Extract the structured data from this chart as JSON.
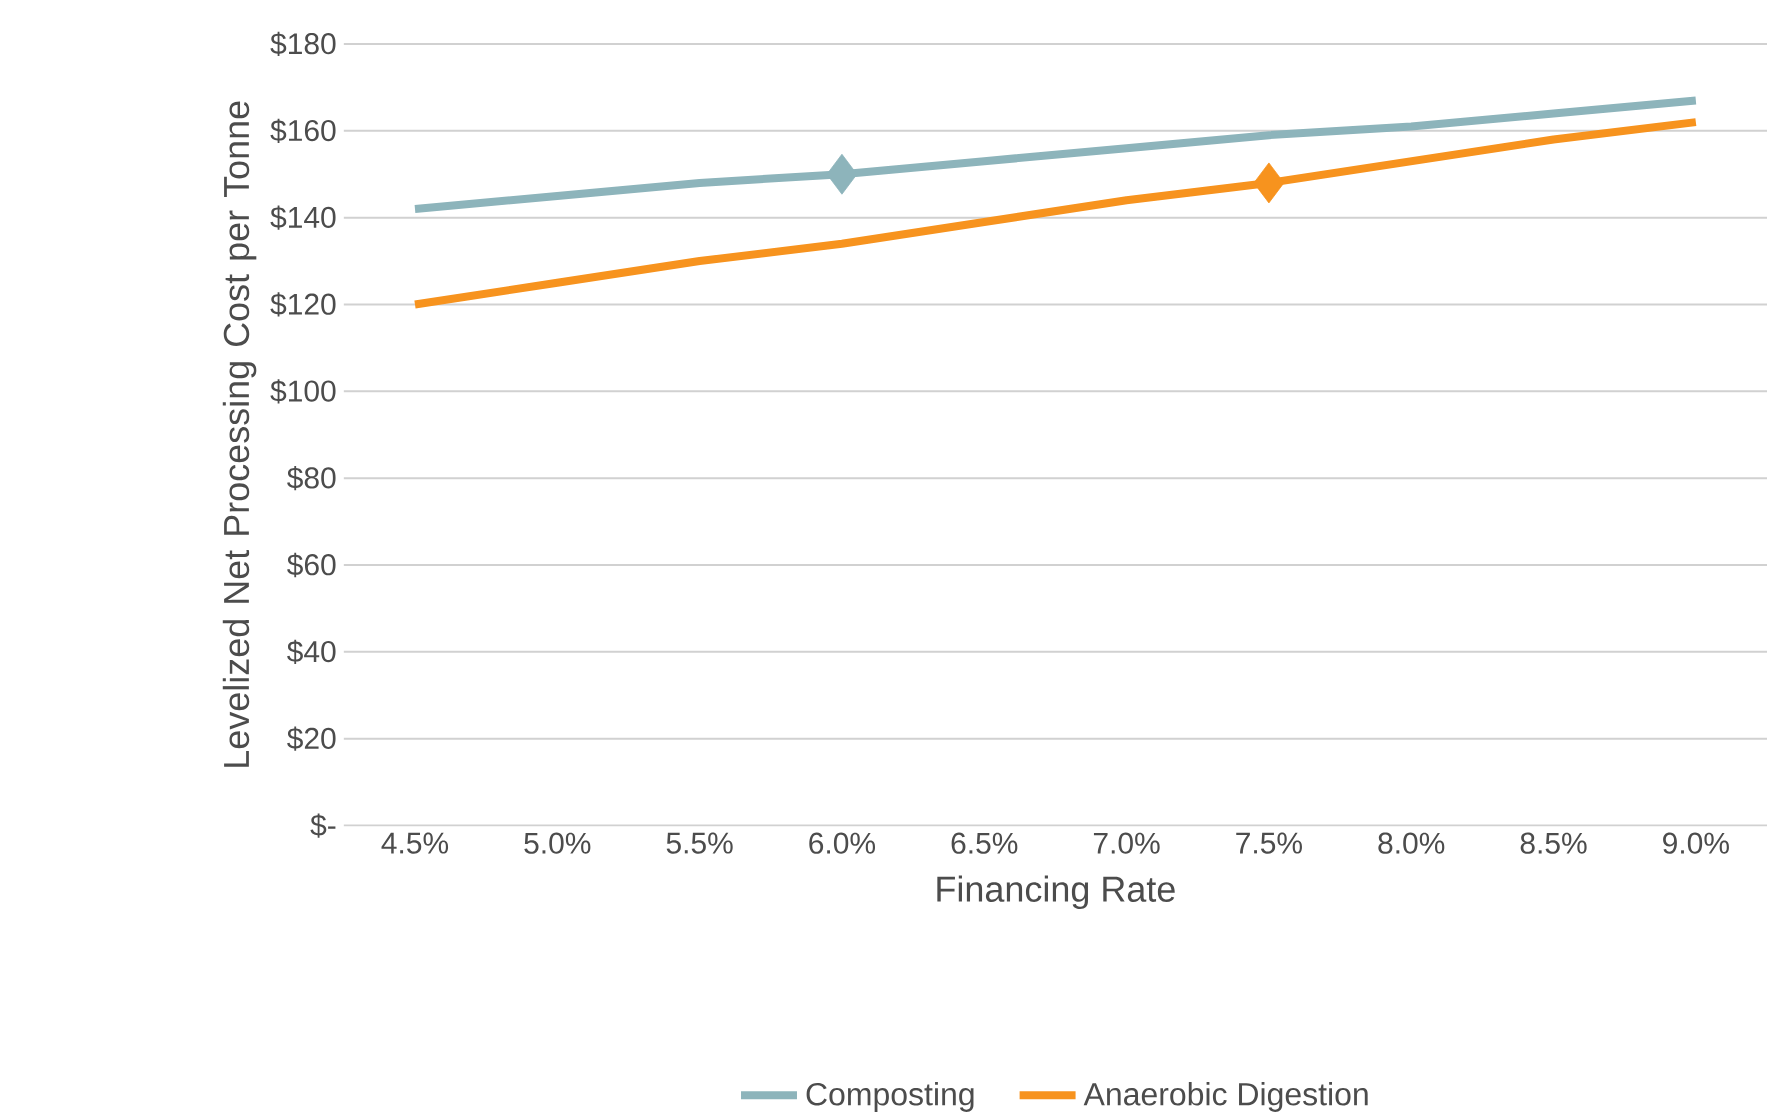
{
  "chart_data": {
    "type": "line",
    "xlabel": "Financing Rate",
    "ylabel": "Levelized Net Processing Cost per Tonne",
    "categories": [
      "4.5%",
      "5.0%",
      "5.5%",
      "6.0%",
      "6.5%",
      "7.0%",
      "7.5%",
      "8.0%",
      "8.5%",
      "9.0%"
    ],
    "series": [
      {
        "name": "Composting",
        "color": "#8db4bb",
        "values": [
          142,
          145,
          148,
          150,
          153,
          156,
          159,
          161,
          164,
          167
        ]
      },
      {
        "name": "Anaerobic Digestion",
        "color": "#f7931e",
        "values": [
          120,
          125,
          130,
          134,
          139,
          144,
          148,
          153,
          158,
          162
        ]
      },
      {
        "type": "scatter",
        "color": "#8db4bb",
        "marker": "diamond",
        "values": [
          null,
          null,
          null,
          150,
          null,
          null,
          null,
          null,
          null,
          null
        ]
      },
      {
        "type": "scatter",
        "color": "#f7931e",
        "marker": "diamond",
        "values": [
          null,
          null,
          null,
          null,
          null,
          null,
          148,
          null,
          null,
          null
        ]
      }
    ],
    "ylim": [
      0,
      180
    ],
    "yticks": [
      {
        "value": 0,
        "label": "$-"
      },
      {
        "value": 20,
        "label": "$20"
      },
      {
        "value": 40,
        "label": "$40"
      },
      {
        "value": 60,
        "label": "$60"
      },
      {
        "value": 80,
        "label": "$80"
      },
      {
        "value": 100,
        "label": "$100"
      },
      {
        "value": 120,
        "label": "$120"
      },
      {
        "value": 140,
        "label": "$140"
      },
      {
        "value": 160,
        "label": "$160"
      },
      {
        "value": 180,
        "label": "$180"
      }
    ],
    "grid": "y",
    "legend": "bottom"
  }
}
